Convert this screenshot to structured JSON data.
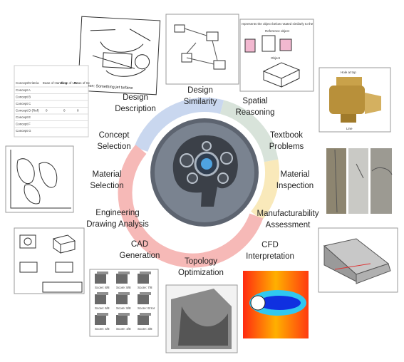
{
  "labels": [
    {
      "lines": [
        "Design",
        "Description"
      ]
    },
    {
      "lines": [
        "Design",
        "Similarity"
      ]
    },
    {
      "lines": [
        "Spatial",
        "Reasoning"
      ]
    },
    {
      "lines": [
        "Textbook",
        "Problems"
      ]
    },
    {
      "lines": [
        "Material",
        "Inspection"
      ]
    },
    {
      "lines": [
        "Manufacturability",
        "Assessment"
      ]
    },
    {
      "lines": [
        "CFD",
        "Interpretation"
      ]
    },
    {
      "lines": [
        "Topology",
        "Optimization"
      ]
    },
    {
      "lines": [
        "CAD",
        "Generation"
      ]
    },
    {
      "lines": [
        "Engineering",
        "Drawing Analysis"
      ]
    },
    {
      "lines": [
        "Material",
        "Selection"
      ]
    },
    {
      "lines": [
        "Concept",
        "Selection"
      ]
    }
  ],
  "concept_table": {
    "header": [
      "Concept/Criteria",
      "Ease of Handling",
      "Ease of Use",
      "Reas of Sc"
    ],
    "rows": [
      "Concept A",
      "Concept B",
      "Concept C",
      "Concept D (Ref)",
      "Concept E",
      "Concept F",
      "Concept G"
    ],
    "ref_scores": [
      "0",
      "0",
      "0"
    ]
  },
  "spatial": {
    "question": "represents the object below rotated similarly to the",
    "reference": "Reference object",
    "object": "Object"
  },
  "valve": {
    "hole": "Hole at top",
    "line": "Line"
  },
  "sketch": {
    "caption": "cription: Something jet turbine"
  },
  "cad_scores": [
    "Score: 8/8",
    "Score: 8/8",
    "Score: 7/8",
    "Score: 6/8",
    "Score: 8/8",
    "Score: Error",
    "Score: 4/8",
    "Score: 4/8",
    "Score: 3/8"
  ]
}
